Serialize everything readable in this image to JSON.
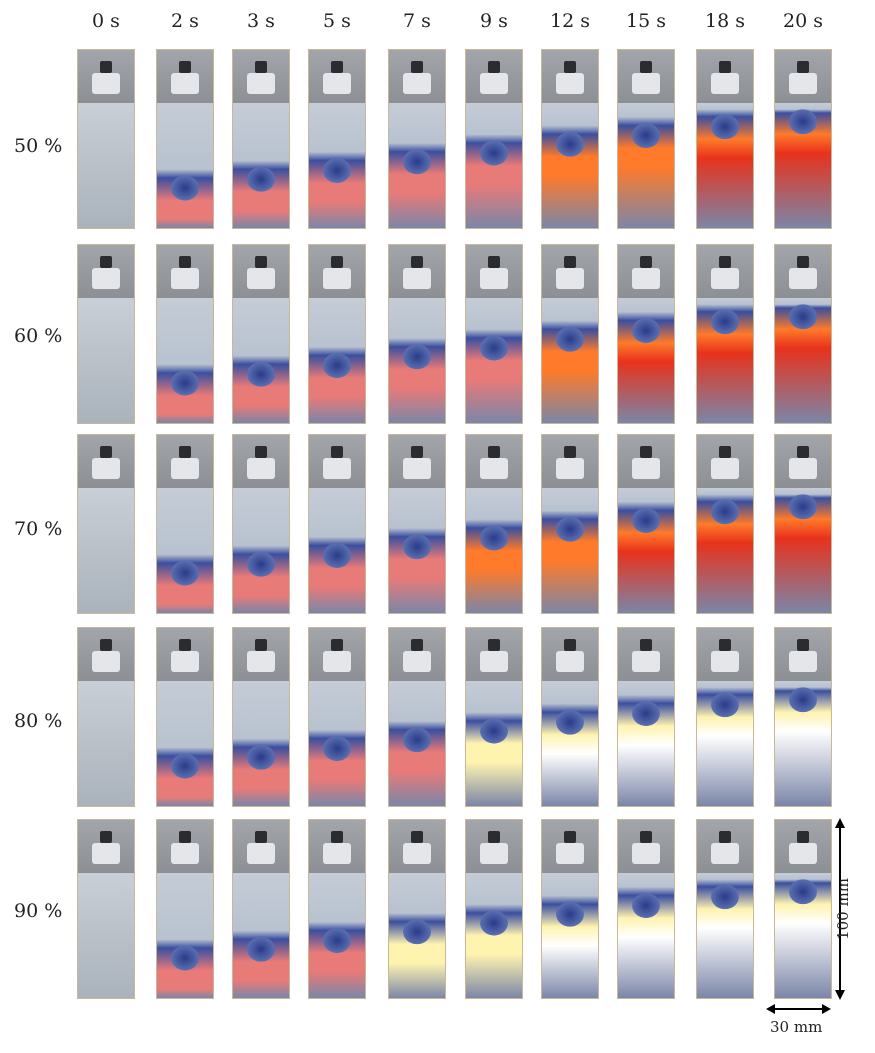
{
  "time_labels": [
    "0 s",
    "2 s",
    "3 s",
    "5 s",
    "7 s",
    "9 s",
    "12 s",
    "15 s",
    "18 s",
    "20 s"
  ],
  "rows": [
    {
      "label": "50 %"
    },
    {
      "label": "60 %"
    },
    {
      "label": "70 %"
    },
    {
      "label": "80 %"
    },
    {
      "label": "90  %"
    }
  ],
  "scale": {
    "height_label": "100 mm",
    "width_label": "30 mm"
  }
}
